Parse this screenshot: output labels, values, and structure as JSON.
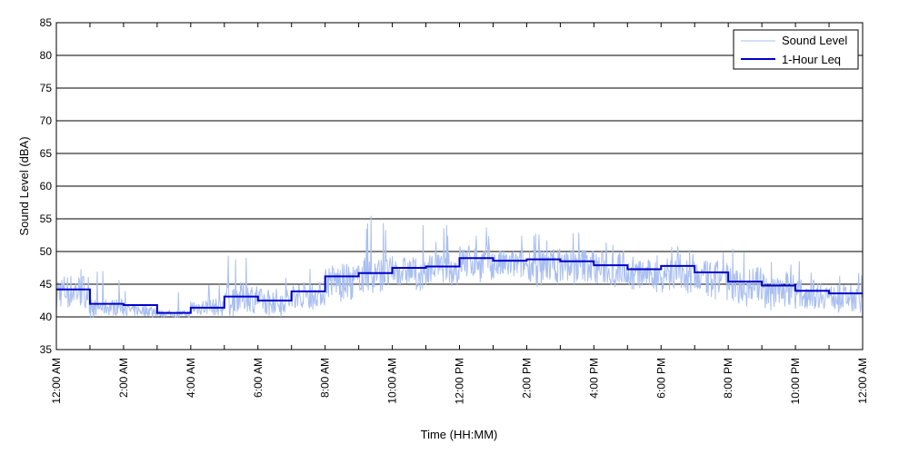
{
  "chart_data": {
    "type": "line",
    "title": "",
    "xlabel": "Time (HH:MM)",
    "ylabel": "Sound Level (dBA)",
    "xlim": [
      0,
      24
    ],
    "ylim": [
      35,
      85
    ],
    "y_ticks": [
      35,
      40,
      45,
      50,
      55,
      60,
      65,
      70,
      75,
      80,
      85
    ],
    "x_ticks": [
      0,
      2,
      4,
      6,
      8,
      10,
      12,
      14,
      16,
      18,
      20,
      22,
      24
    ],
    "x_tick_labels": [
      "12:00 AM",
      "2:00 AM",
      "4:00 AM",
      "6:00 AM",
      "8:00 AM",
      "10:00 AM",
      "12:00 PM",
      "2:00 PM",
      "4:00 PM",
      "6:00 PM",
      "8:00 PM",
      "10:00 PM",
      "12:00 AM"
    ],
    "grid": "horizontal",
    "legend_position": "top-right",
    "series": [
      {
        "name": "Sound Level",
        "color": "#a9bff0",
        "style": "thin-line",
        "hourly_mean": [
          44.0,
          41.5,
          41.0,
          40.5,
          41.5,
          43.0,
          42.5,
          43.5,
          45.5,
          46.5,
          47.0,
          47.5,
          48.5,
          48.0,
          48.0,
          48.0,
          47.5,
          46.5,
          47.0,
          46.0,
          45.0,
          44.5,
          43.5,
          43.0
        ],
        "hourly_max": [
          49.0,
          47.0,
          46.0,
          45.5,
          46.5,
          50.5,
          48.0,
          49.5,
          53.0,
          57.0,
          54.0,
          54.0,
          54.0,
          53.0,
          53.0,
          53.0,
          52.0,
          51.0,
          52.0,
          52.5,
          51.0,
          50.0,
          49.0,
          48.0
        ],
        "hourly_min": [
          40.5,
          39.8,
          39.8,
          39.8,
          39.8,
          40.0,
          40.0,
          41.0,
          42.0,
          43.0,
          44.0,
          44.5,
          45.0,
          45.0,
          44.5,
          44.5,
          44.0,
          43.5,
          43.5,
          42.5,
          41.5,
          41.0,
          40.5,
          40.5
        ]
      },
      {
        "name": "1-Hour Leq",
        "color": "#0000cc",
        "style": "step",
        "x": [
          0,
          1,
          2,
          3,
          4,
          5,
          6,
          7,
          8,
          9,
          10,
          11,
          12,
          13,
          14,
          15,
          16,
          17,
          18,
          19,
          20,
          21,
          22,
          23,
          24
        ],
        "values": [
          44.2,
          42.0,
          41.8,
          40.6,
          41.4,
          43.1,
          42.5,
          43.9,
          46.2,
          46.7,
          47.5,
          47.7,
          49.0,
          48.6,
          48.8,
          48.5,
          47.9,
          47.3,
          47.8,
          46.8,
          45.4,
          44.8,
          44.0,
          43.6,
          43.6
        ]
      }
    ]
  }
}
